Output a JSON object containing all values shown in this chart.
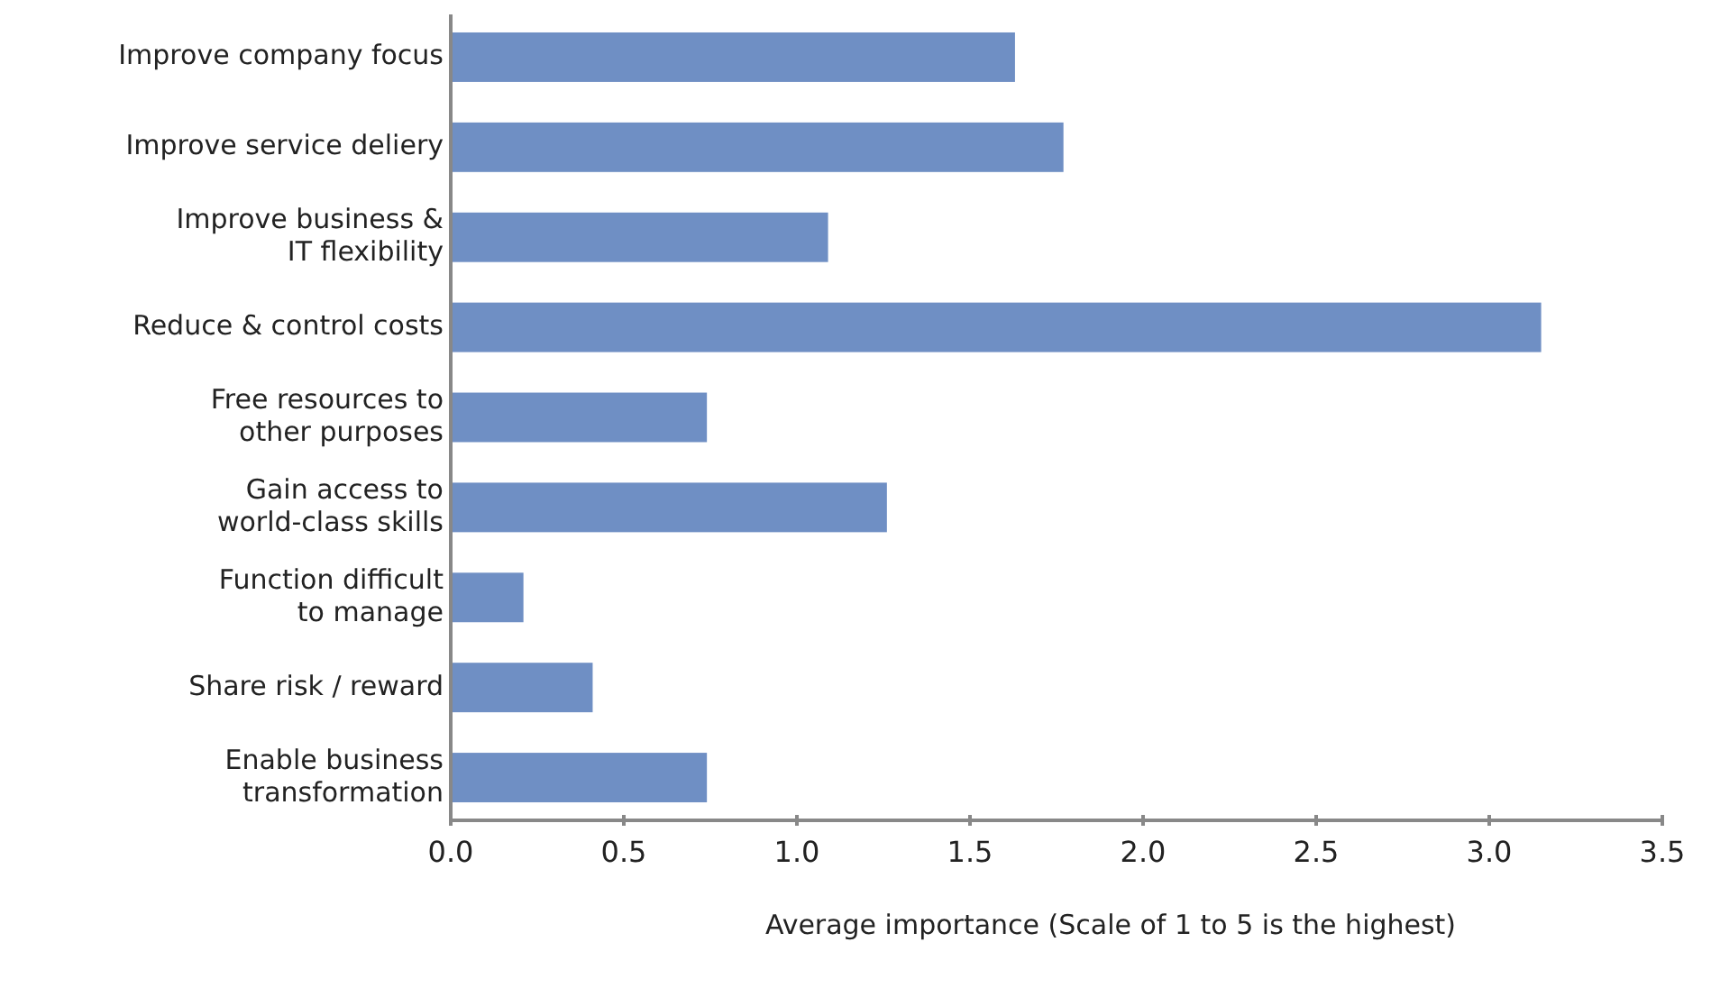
{
  "chart_data": {
    "type": "bar",
    "orientation": "horizontal",
    "xlabel": "Average importance (Scale of 1 to 5 is the highest)",
    "categories": [
      "Improve company focus",
      "Improve service deliery",
      "Improve business &\nIT flexibility",
      "Reduce & control costs",
      "Free resources to\nother purposes",
      "Gain access to\nworld-class skills",
      "Function difficult\nto manage",
      "Share risk / reward",
      "Enable business\ntransformation"
    ],
    "values": [
      1.63,
      1.77,
      1.09,
      3.15,
      0.74,
      1.26,
      0.21,
      0.41,
      0.74
    ],
    "color": "#6f8fc4",
    "xlim": [
      0,
      3.5
    ],
    "xticks": [
      {
        "value": 0,
        "label": "0.0"
      },
      {
        "value": 0.5,
        "label": "0.5"
      },
      {
        "value": 1,
        "label": "1.0"
      },
      {
        "value": 1.5,
        "label": "1.5"
      },
      {
        "value": 2,
        "label": "2.0"
      },
      {
        "value": 2.5,
        "label": "2.5"
      },
      {
        "value": 3,
        "label": "3.0"
      },
      {
        "value": 3.5,
        "label": "3.5"
      }
    ],
    "grid": false
  }
}
